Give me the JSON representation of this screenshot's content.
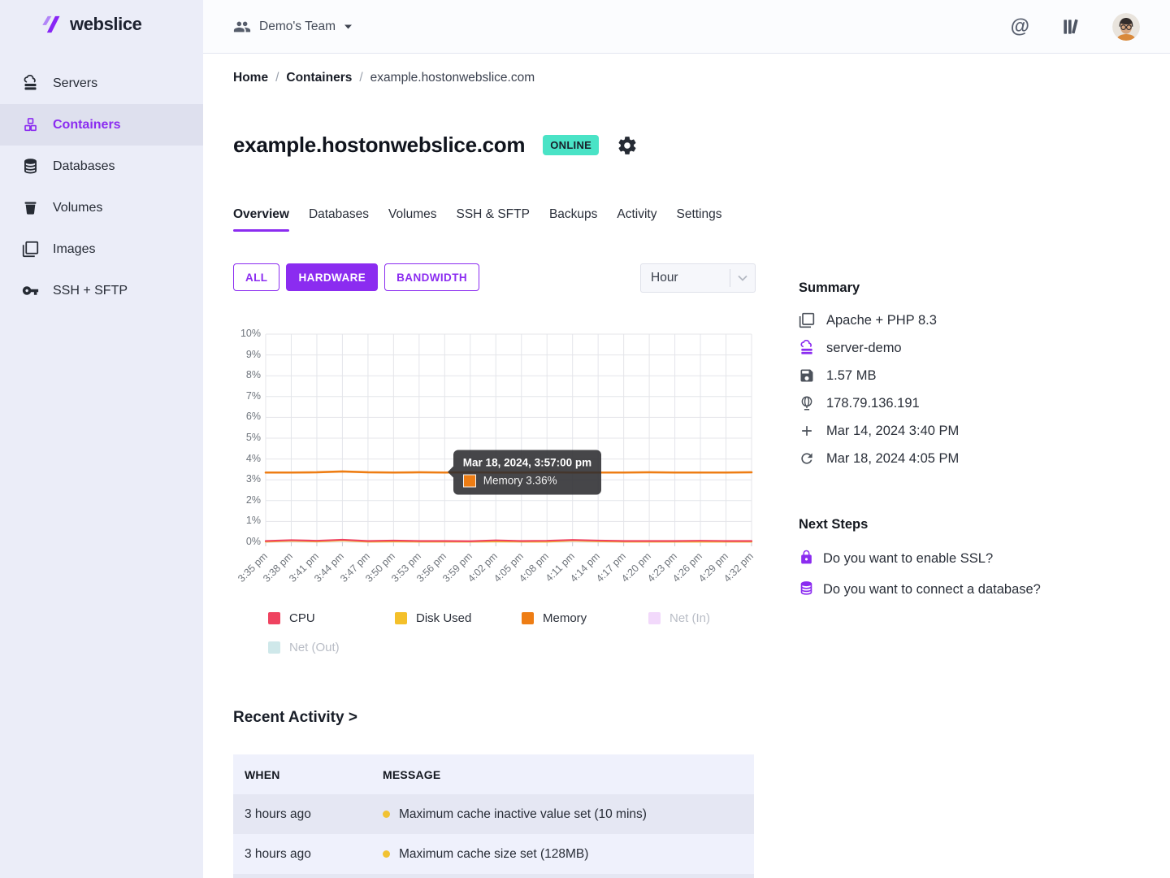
{
  "brand": {
    "name": "webslice"
  },
  "topbar": {
    "team_label": "Demo's Team",
    "at_icon": "@"
  },
  "sidebar": {
    "items": [
      {
        "label": "Servers",
        "active": false
      },
      {
        "label": "Containers",
        "active": true
      },
      {
        "label": "Databases",
        "active": false
      },
      {
        "label": "Volumes",
        "active": false
      },
      {
        "label": "Images",
        "active": false
      },
      {
        "label": "SSH + SFTP",
        "active": false
      }
    ]
  },
  "breadcrumb": {
    "items": [
      "Home",
      "Containers",
      "example.hostonwebslice.com"
    ],
    "separator": "/"
  },
  "page": {
    "title": "example.hostonwebslice.com",
    "status_badge": "ONLINE"
  },
  "tabs": {
    "items": [
      "Overview",
      "Databases",
      "Volumes",
      "SSH & SFTP",
      "Backups",
      "Activity",
      "Settings"
    ],
    "active": "Overview"
  },
  "filters": {
    "buttons": [
      "ALL",
      "HARDWARE",
      "BANDWIDTH"
    ],
    "active": "HARDWARE",
    "interval_value": "Hour"
  },
  "chart_data": {
    "type": "line",
    "title": "",
    "x_labels": [
      "3:35 pm",
      "3:38 pm",
      "3:41 pm",
      "3:44 pm",
      "3:47 pm",
      "3:50 pm",
      "3:53 pm",
      "3:56 pm",
      "3:59 pm",
      "4:02 pm",
      "4:05 pm",
      "4:08 pm",
      "4:11 pm",
      "4:14 pm",
      "4:17 pm",
      "4:20 pm",
      "4:23 pm",
      "4:26 pm",
      "4:29 pm",
      "4:32 pm"
    ],
    "ylim": [
      0,
      10
    ],
    "y_tick_suffix": "%",
    "grid": true,
    "legend_position": "bottom",
    "series": [
      {
        "name": "CPU",
        "color": "#ef4360",
        "hidden": false,
        "values": [
          0.06,
          0.1,
          0.07,
          0.12,
          0.06,
          0.08,
          0.06,
          0.06,
          0.05,
          0.09,
          0.06,
          0.07,
          0.11,
          0.08,
          0.06,
          0.06,
          0.06,
          0.07,
          0.06,
          0.06
        ]
      },
      {
        "name": "Disk Used",
        "color": "#f4c02a",
        "hidden": false,
        "values": [
          0.03,
          0.07,
          0.04,
          0.09,
          0.03,
          0.04,
          0.03,
          0.03,
          0.03,
          0.04,
          0.03,
          0.03,
          0.08,
          0.05,
          0.03,
          0.03,
          0.03,
          0.03,
          0.03,
          0.03
        ]
      },
      {
        "name": "Memory",
        "color": "#ee7d14",
        "hidden": false,
        "values": [
          3.35,
          3.35,
          3.36,
          3.4,
          3.36,
          3.35,
          3.36,
          3.35,
          3.36,
          3.35,
          3.35,
          3.36,
          3.35,
          3.35,
          3.35,
          3.36,
          3.35,
          3.35,
          3.35,
          3.36
        ]
      },
      {
        "name": "Net (In)",
        "color": "#f2d9fb",
        "hidden": true,
        "values": []
      },
      {
        "name": "Net (Out)",
        "color": "#cfe8ea",
        "hidden": true,
        "values": []
      }
    ],
    "tooltip": {
      "title": "Mar 18, 2024, 3:57:00 pm",
      "series": "Memory",
      "label": "Memory 3.36%",
      "value": 3.36,
      "time_offset_minutes": 22,
      "total_minutes": 57
    }
  },
  "summary": {
    "title": "Summary",
    "items": [
      {
        "icon": "layers-icon",
        "text": "Apache + PHP 8.3"
      },
      {
        "icon": "cloud-server-icon",
        "text": "server-demo"
      },
      {
        "icon": "disk-icon",
        "text": "1.57 MB"
      },
      {
        "icon": "globe-icon",
        "text": "178.79.136.191"
      },
      {
        "icon": "plus-icon",
        "text": "Mar 14, 2024 3:40 PM"
      },
      {
        "icon": "refresh-icon",
        "text": "Mar 18, 2024 4:05 PM"
      }
    ]
  },
  "next_steps": {
    "title": "Next Steps",
    "items": [
      {
        "icon": "lock-icon",
        "text": "Do you want to enable SSL?"
      },
      {
        "icon": "database-icon",
        "text": "Do you want to connect a database?"
      }
    ]
  },
  "recent_activity": {
    "title": "Recent Activity >",
    "columns": [
      "WHEN",
      "MESSAGE"
    ],
    "rows": [
      {
        "when": "3 hours ago",
        "message": "Maximum cache inactive value set (10 mins)"
      },
      {
        "when": "3 hours ago",
        "message": "Maximum cache size set (128MB)"
      }
    ]
  },
  "colors": {
    "accent": "#8b2cf0",
    "online_badge_bg": "#4ae3c6",
    "activity_dot": "#f1c232"
  }
}
